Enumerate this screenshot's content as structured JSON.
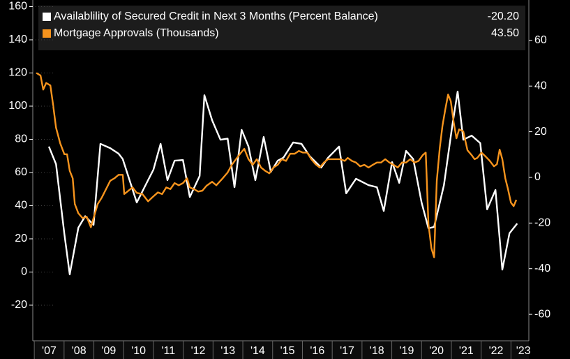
{
  "chart_data": {
    "type": "line",
    "xlim": [
      2006.95,
      2023.6
    ],
    "xticks": [
      {
        "value": 2007,
        "label": "'07"
      },
      {
        "value": 2008,
        "label": "'08"
      },
      {
        "value": 2009,
        "label": "'09"
      },
      {
        "value": 2010,
        "label": "'10"
      },
      {
        "value": 2011,
        "label": "'11"
      },
      {
        "value": 2012,
        "label": "'12"
      },
      {
        "value": 2013,
        "label": "'13"
      },
      {
        "value": 2014,
        "label": "'14"
      },
      {
        "value": 2015,
        "label": "'15"
      },
      {
        "value": 2016,
        "label": "'16"
      },
      {
        "value": 2017,
        "label": "'17"
      },
      {
        "value": 2018,
        "label": "'18"
      },
      {
        "value": 2019,
        "label": "'19"
      },
      {
        "value": 2020,
        "label": "'20"
      },
      {
        "value": 2021,
        "label": "'21"
      },
      {
        "value": 2022,
        "label": "'22"
      },
      {
        "value": 2023,
        "label": "'23"
      }
    ],
    "ylim": [
      -41.5,
      164
    ],
    "yticks": [
      -20,
      0,
      20,
      40,
      60,
      80,
      100,
      120,
      140,
      160
    ],
    "y2lim": [
      -71.6,
      77.7
    ],
    "y2ticks": [
      -60,
      -40,
      -20,
      0,
      20,
      40,
      60
    ],
    "series": [
      {
        "name": "Availablility of Secured Credit in Next 3 Months (Percent Balance)",
        "color": "#ffffff",
        "axis": "y2",
        "last_label": "-20.20",
        "x": [
          2007.49,
          2007.73,
          2008.01,
          2008.19,
          2008.48,
          2008.71,
          2008.99,
          2009.22,
          2009.55,
          2009.83,
          2009.97,
          2010.44,
          2010.82,
          2011.0,
          2011.24,
          2011.47,
          2011.71,
          2011.99,
          2012.22,
          2012.55,
          2012.71,
          2012.97,
          2013.25,
          2013.49,
          2013.72,
          2013.96,
          2014.19,
          2014.42,
          2014.7,
          2014.94,
          2015.17,
          2015.36,
          2015.69,
          2015.97,
          2016.25,
          2016.63,
          2016.86,
          2017.23,
          2017.47,
          2017.8,
          2018.22,
          2018.5,
          2018.73,
          2019.01,
          2019.25,
          2019.48,
          2019.72,
          2020.0,
          2020.23,
          2020.42,
          2020.75,
          2021.03,
          2021.21,
          2021.4,
          2021.68,
          2021.97,
          2022.2,
          2022.48,
          2022.71,
          2022.95,
          2023.21
        ],
        "values": [
          13.5,
          5.8,
          -24.8,
          -42.5,
          -22,
          -17,
          -20.8,
          14.7,
          12.8,
          10.4,
          8,
          -11,
          -1.2,
          3.4,
          14.7,
          -1.2,
          7.3,
          7.6,
          -8.6,
          0.6,
          36,
          25,
          16.5,
          17,
          -4.3,
          20.8,
          13.5,
          -1.2,
          17.7,
          2.4,
          7.3,
          8.6,
          15.3,
          14.7,
          9.2,
          4.3,
          8.6,
          13.5,
          -7,
          -0.6,
          -3.4,
          -4.3,
          -14.7,
          6.7,
          -2.4,
          11.6,
          8,
          -11,
          -22.3,
          -21.7,
          -3.4,
          22.6,
          37.6,
          16.5,
          18.3,
          15,
          -14,
          -5.5,
          -40.4,
          -24.5,
          -20.2
        ]
      },
      {
        "name": "Mortgage Approvals (Thousands)",
        "color": "#f7941d",
        "axis": "y",
        "last_label": "43.50",
        "x": [
          2007.07,
          2007.21,
          2007.3,
          2007.4,
          2007.54,
          2007.63,
          2007.73,
          2007.87,
          2008.01,
          2008.1,
          2008.19,
          2008.29,
          2008.36,
          2008.48,
          2008.62,
          2008.76,
          2008.9,
          2008.99,
          2009.13,
          2009.27,
          2009.41,
          2009.55,
          2009.69,
          2009.83,
          2009.97,
          2010.02,
          2010.16,
          2010.3,
          2010.44,
          2010.63,
          2010.82,
          2010.96,
          2011.15,
          2011.29,
          2011.43,
          2011.57,
          2011.71,
          2011.85,
          2011.99,
          2012.13,
          2012.22,
          2012.36,
          2012.5,
          2012.64,
          2012.78,
          2012.97,
          2013.11,
          2013.3,
          2013.49,
          2013.63,
          2013.77,
          2013.91,
          2014.05,
          2014.19,
          2014.33,
          2014.47,
          2014.61,
          2014.75,
          2014.89,
          2015.03,
          2015.17,
          2015.31,
          2015.45,
          2015.59,
          2015.74,
          2015.88,
          2016.02,
          2016.16,
          2016.3,
          2016.44,
          2016.58,
          2016.72,
          2016.86,
          2017.0,
          2017.14,
          2017.28,
          2017.42,
          2017.52,
          2017.66,
          2017.8,
          2017.94,
          2018.08,
          2018.22,
          2018.36,
          2018.5,
          2018.64,
          2018.78,
          2018.92,
          2019.06,
          2019.2,
          2019.34,
          2019.48,
          2019.62,
          2019.76,
          2019.9,
          2020.04,
          2020.14,
          2020.23,
          2020.33,
          2020.42,
          2020.51,
          2020.61,
          2020.7,
          2020.79,
          2020.89,
          2020.98,
          2021.08,
          2021.17,
          2021.26,
          2021.4,
          2021.54,
          2021.68,
          2021.78,
          2021.87,
          2022.01,
          2022.15,
          2022.29,
          2022.43,
          2022.53,
          2022.62,
          2022.71,
          2022.81,
          2022.9,
          2023.0,
          2023.09,
          2023.18
        ],
        "values": [
          120,
          118.5,
          110,
          114,
          112.5,
          101,
          87,
          77.6,
          71,
          71,
          61,
          56.5,
          41,
          35.4,
          32.5,
          33.3,
          27,
          32.5,
          41,
          45,
          50,
          55,
          56.5,
          58.6,
          58.6,
          47,
          49,
          51,
          47.7,
          47,
          42.6,
          45,
          48,
          47,
          51,
          50,
          53.6,
          52.3,
          53.6,
          56.5,
          51,
          50,
          48.5,
          49,
          52,
          54.4,
          52.3,
          56,
          60,
          64.6,
          68,
          71.3,
          74.3,
          68,
          64.6,
          68,
          63,
          61,
          59.5,
          63,
          64.6,
          68,
          67,
          71.3,
          71.3,
          73,
          72,
          72,
          68,
          65,
          63,
          66,
          68,
          68,
          68,
          68,
          67,
          68.8,
          67,
          66,
          63.7,
          64.6,
          63,
          64.6,
          66,
          66,
          68,
          66,
          64.6,
          63,
          66,
          66,
          68,
          66,
          67,
          70.5,
          72,
          29,
          14.3,
          8.9,
          55,
          74.7,
          88,
          97.5,
          107,
          103,
          90,
          80.6,
          86,
          84.8,
          73.4,
          70.5,
          68,
          68.8,
          72,
          69.6,
          67,
          63.7,
          65,
          73.8,
          68,
          56.5,
          50,
          41.8,
          39.7,
          43.5
        ]
      }
    ]
  }
}
